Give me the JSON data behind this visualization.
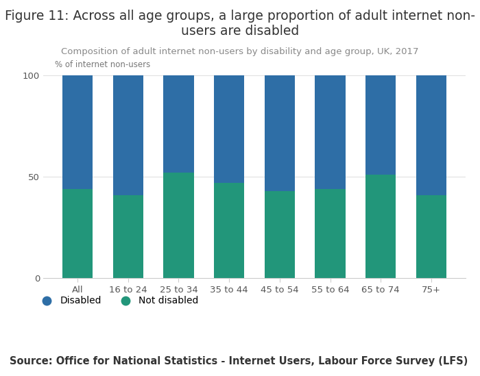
{
  "categories": [
    "All",
    "16 to 24",
    "25 to 34",
    "35 to 44",
    "45 to 54",
    "55 to 64",
    "65 to 74",
    "75+"
  ],
  "not_disabled": [
    44,
    41,
    52,
    47,
    43,
    44,
    51,
    41
  ],
  "disabled": [
    56,
    59,
    48,
    53,
    57,
    56,
    49,
    59
  ],
  "color_disabled": "#2e6ea6",
  "color_not_disabled": "#22967a",
  "title_line1": "Figure 11: Across all age groups, a large proportion of adult internet non-",
  "title_line2": "users are disabled",
  "subtitle": "Composition of adult internet non-users by disability and age group, UK, 2017",
  "ylabel": "% of internet non-users",
  "ylim": [
    0,
    100
  ],
  "yticks": [
    0,
    50,
    100
  ],
  "source": "Source: Office for National Statistics - Internet Users, Labour Force Survey (LFS)",
  "legend_disabled": "Disabled",
  "legend_not_disabled": "Not disabled",
  "background_color": "#ffffff",
  "title_fontsize": 13.5,
  "subtitle_fontsize": 9.5,
  "source_fontsize": 10.5,
  "tick_fontsize": 9.5,
  "bar_width": 0.6
}
